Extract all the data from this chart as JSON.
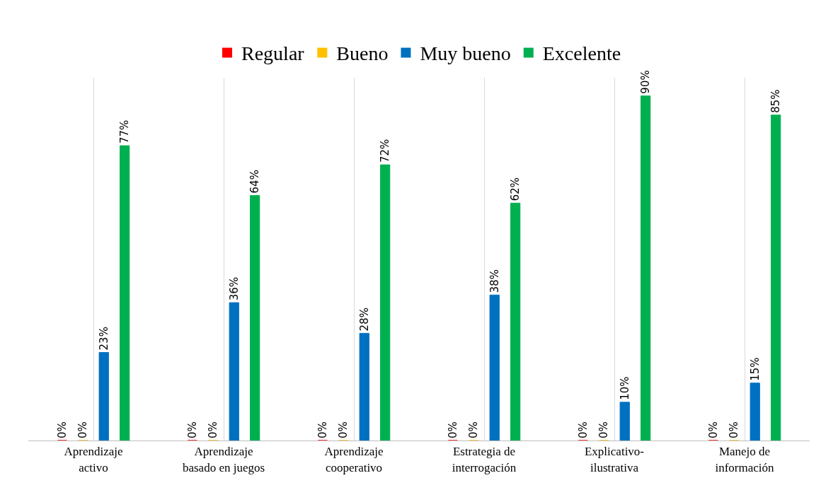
{
  "chart_data": {
    "type": "bar",
    "categories": [
      "Aprendizaje\nactivo",
      "Aprendizaje\nbasado en juegos",
      "Aprendizaje\ncooperativo",
      "Estrategia de\ninterrogación",
      "Explicativo-\nilustrativa",
      "Manejo de\ninformación"
    ],
    "series": [
      {
        "name": "Regular",
        "color": "#ff0000",
        "values": [
          0,
          0,
          0,
          0,
          0,
          0
        ],
        "value_labels": [
          "0%",
          "0%",
          "0%",
          "0%",
          "0%",
          "0%"
        ]
      },
      {
        "name": "Bueno",
        "color": "#ffc000",
        "values": [
          0,
          0,
          0,
          0,
          0,
          0
        ],
        "value_labels": [
          "0%",
          "0%",
          "0%",
          "0%",
          "0%",
          "0%"
        ]
      },
      {
        "name": "Muy bueno",
        "color": "#0070c0",
        "values": [
          23,
          36,
          28,
          38,
          10,
          15
        ],
        "value_labels": [
          "23%",
          "36%",
          "28%",
          "38%",
          "10%",
          "15%"
        ]
      },
      {
        "name": "Excelente",
        "color": "#00b050",
        "values": [
          77,
          64,
          72,
          62,
          90,
          85
        ],
        "value_labels": [
          "77%",
          "64%",
          "72%",
          "62%",
          "90%",
          "85%"
        ]
      }
    ],
    "grid": "x",
    "legend": "top",
    "tick_labels": "x"
  }
}
